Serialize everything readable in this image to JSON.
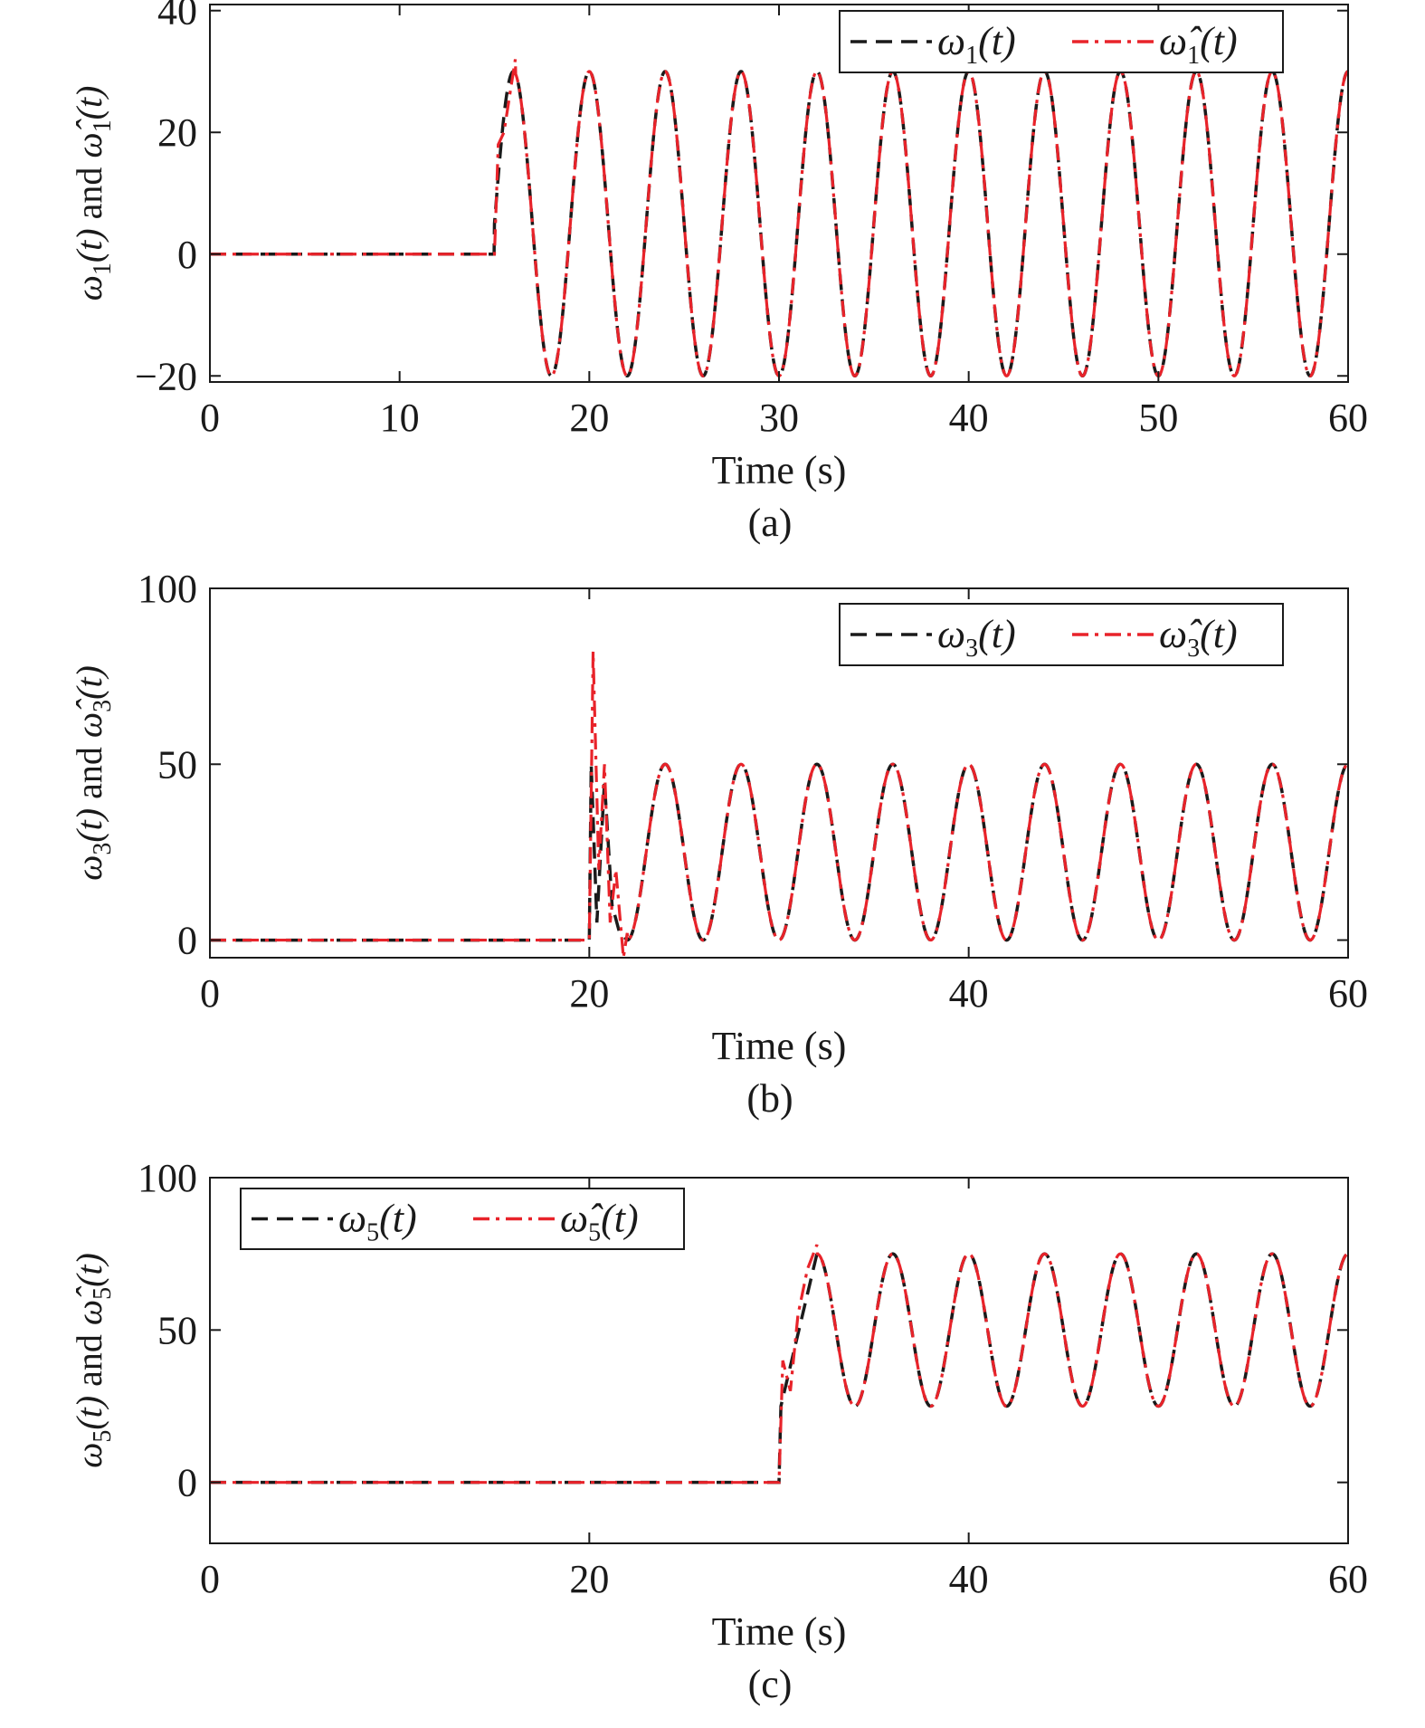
{
  "chart_data": [
    {
      "type": "line",
      "panel_caption": "(a)",
      "xlabel": "Time (s)",
      "ylabel": "ω1(t) and ω̂1(t)",
      "ylabel_parts": {
        "sym": "ω",
        "sub": "1",
        "arg": "(t)",
        "conj": " and ",
        "hat_sym": "ω̂",
        "hat_sub": "1",
        "hat_arg": "(t)"
      },
      "xlim": [
        0,
        60
      ],
      "ylim": [
        -21,
        41
      ],
      "xticks": [
        0,
        10,
        20,
        30,
        40,
        50,
        60
      ],
      "yticks": [
        -20,
        0,
        20,
        40
      ],
      "ytick_labels": [
        "−20",
        "0",
        "20",
        "40"
      ],
      "legend_position": "top-right",
      "grid": false,
      "series": [
        {
          "name": "ω1(t)",
          "sym": "ω",
          "sub": "1",
          "arg": "(t)",
          "color": "#1a1a1a",
          "style": "dashed",
          "model": {
            "start": 15,
            "offset": 5,
            "amp": 25,
            "period": 4,
            "phase_peak": 16
          }
        },
        {
          "name": "ω̂1(t)",
          "sym": "ω̂",
          "sub": "1",
          "arg": "(t)",
          "color": "#e8232a",
          "style": "dashdot",
          "model": {
            "start": 15,
            "offset": 5,
            "amp": 25,
            "period": 4,
            "phase_peak": 16
          },
          "transient": [
            [
              15,
              0
            ],
            [
              15.2,
              18
            ],
            [
              15.5,
              20
            ],
            [
              16.1,
              32
            ]
          ]
        }
      ]
    },
    {
      "type": "line",
      "panel_caption": "(b)",
      "xlabel": "Time (s)",
      "ylabel": "ω3(t) and ω̂3(t)",
      "ylabel_parts": {
        "sym": "ω",
        "sub": "3",
        "arg": "(t)",
        "conj": " and ",
        "hat_sym": "ω̂",
        "hat_sub": "3",
        "hat_arg": "(t)"
      },
      "xlim": [
        0,
        60
      ],
      "ylim": [
        -5,
        100
      ],
      "xticks": [
        0,
        20,
        40,
        60
      ],
      "yticks": [
        0,
        50,
        100
      ],
      "ytick_labels": [
        "0",
        "50",
        "100"
      ],
      "legend_position": "top-right",
      "grid": false,
      "series": [
        {
          "name": "ω3(t)",
          "sym": "ω",
          "sub": "3",
          "arg": "(t)",
          "color": "#1a1a1a",
          "style": "dashed",
          "model": {
            "start": 22,
            "offset": 25,
            "amp": 25,
            "period": 4,
            "phase_peak": 24
          },
          "transient": [
            [
              20,
              0
            ],
            [
              20.1,
              50
            ],
            [
              20.4,
              5
            ],
            [
              20.8,
              45
            ],
            [
              21.2,
              10
            ],
            [
              21.6,
              2
            ],
            [
              22,
              0
            ]
          ]
        },
        {
          "name": "ω̂3(t)",
          "sym": "ω̂",
          "sub": "3",
          "arg": "(t)",
          "color": "#e8232a",
          "style": "dashdot",
          "model": {
            "start": 22,
            "offset": 25,
            "amp": 25,
            "period": 4,
            "phase_peak": 24
          },
          "transient": [
            [
              20,
              0
            ],
            [
              20.2,
              82
            ],
            [
              20.5,
              20
            ],
            [
              20.8,
              50
            ],
            [
              21.1,
              5
            ],
            [
              21.4,
              20
            ],
            [
              21.8,
              -5
            ],
            [
              22,
              2
            ]
          ]
        }
      ]
    },
    {
      "type": "line",
      "panel_caption": "(c)",
      "xlabel": "Time (s)",
      "ylabel": "ω5(t) and ω̂5(t)",
      "ylabel_parts": {
        "sym": "ω",
        "sub": "5",
        "arg": "(t)",
        "conj": " and ",
        "hat_sym": "ω̂",
        "hat_sub": "5",
        "hat_arg": "(t)"
      },
      "xlim": [
        0,
        60
      ],
      "ylim": [
        -20,
        100
      ],
      "xticks": [
        0,
        20,
        40,
        60
      ],
      "yticks": [
        0,
        50,
        100
      ],
      "ytick_labels": [
        "0",
        "50",
        "100"
      ],
      "legend_position": "top-left",
      "grid": false,
      "series": [
        {
          "name": "ω5(t)",
          "sym": "ω",
          "sub": "5",
          "arg": "(t)",
          "color": "#1a1a1a",
          "style": "dashed",
          "model": {
            "start": 30,
            "offset": 50,
            "amp": 25,
            "period": 4,
            "phase_peak": 32
          },
          "transient": [
            [
              30,
              0
            ],
            [
              30.1,
              25
            ],
            [
              32,
              75
            ]
          ]
        },
        {
          "name": "ω̂5(t)",
          "sym": "ω̂",
          "sub": "5",
          "arg": "(t)",
          "color": "#e8232a",
          "style": "dashdot",
          "model": {
            "start": 30,
            "offset": 50,
            "amp": 25,
            "period": 4,
            "phase_peak": 32
          },
          "transient": [
            [
              30,
              0
            ],
            [
              30.2,
              40
            ],
            [
              30.6,
              30
            ],
            [
              31,
              55
            ],
            [
              31.5,
              70
            ],
            [
              32,
              78
            ]
          ]
        }
      ]
    }
  ]
}
